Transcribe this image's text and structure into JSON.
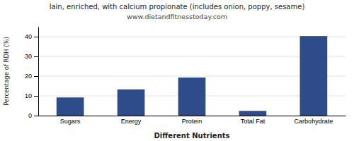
{
  "chart_data": {
    "type": "bar",
    "title": "lain, enriched, with calcium propionate (includes onion, poppy, sesame)",
    "subtitle": "www.dietandfitnesstoday.com",
    "categories": [
      "Sugars",
      "Energy",
      "Protein",
      "Total Fat",
      "Carbohydrate"
    ],
    "values": [
      9.2,
      13.3,
      19.3,
      2.4,
      40.3
    ],
    "color": "#2e4b8a",
    "xlabel": "Different Nutrients",
    "ylabel": "Percentage of RDH (%)",
    "ylim": [
      0,
      45
    ],
    "yticks": [
      0,
      10,
      20,
      30,
      40
    ],
    "grid": true
  }
}
